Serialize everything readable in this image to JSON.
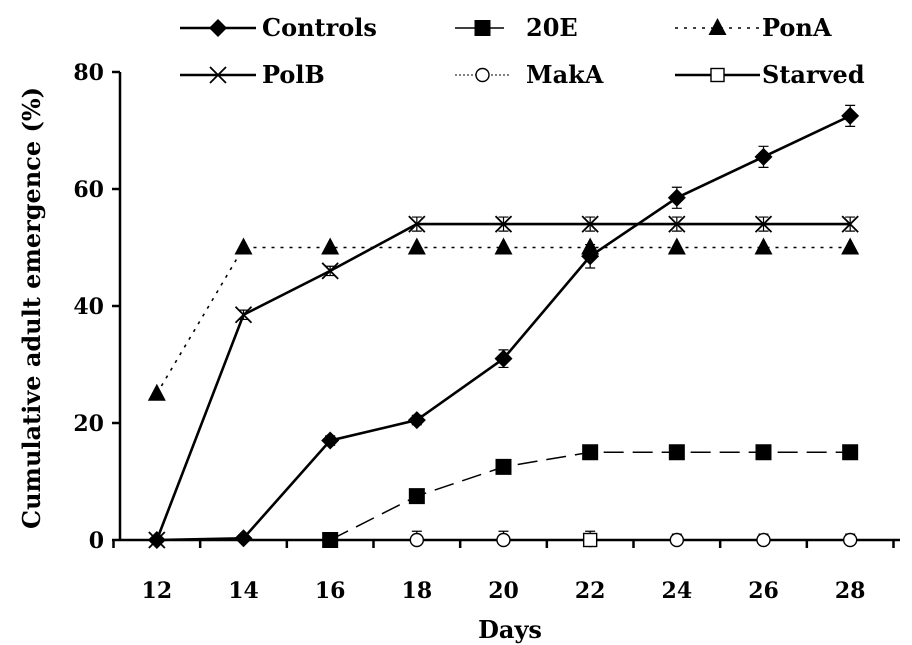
{
  "chart_data": {
    "type": "line",
    "xlabel": "Days",
    "ylabel": "Cumulative adult emergence (%)",
    "x": [
      12,
      14,
      16,
      18,
      20,
      22,
      24,
      26,
      28
    ],
    "x_tick_labels": [
      "12",
      "14",
      "16",
      "18",
      "20",
      "22",
      "24",
      "26",
      "28"
    ],
    "ylim": [
      0,
      80
    ],
    "y_ticks": [
      0,
      20,
      40,
      60,
      80
    ],
    "y_tick_labels": [
      "0",
      "20",
      "40",
      "60",
      "80"
    ],
    "grid": false,
    "legend_position": "top",
    "series": [
      {
        "name": "Controls",
        "marker": "diamond-filled",
        "line": "solid",
        "x": [
          12,
          14,
          16,
          18,
          20,
          22,
          24,
          26,
          28
        ],
        "values": [
          0,
          0.3,
          17,
          20.5,
          31,
          48.5,
          58.5,
          65.5,
          72.5
        ],
        "errors": [
          0,
          0,
          0.8,
          0.8,
          1.5,
          2,
          1.8,
          1.8,
          1.8
        ]
      },
      {
        "name": "20E",
        "marker": "square-filled",
        "line": "long-dash",
        "x": [
          16,
          18,
          20,
          22,
          24,
          26,
          28
        ],
        "values": [
          0,
          7.5,
          12.5,
          15,
          15,
          15,
          15
        ],
        "errors": [
          0,
          0.5,
          0.5,
          0.5,
          0.5,
          0.5,
          0.5
        ]
      },
      {
        "name": "PonA",
        "marker": "triangle-filled",
        "line": "dotted",
        "x": [
          12,
          14,
          16,
          18,
          20,
          22,
          24,
          26,
          28
        ],
        "values": [
          25,
          50,
          50,
          50,
          50,
          50,
          50,
          50,
          50
        ],
        "errors": [
          0,
          0,
          0,
          0,
          0,
          0,
          0,
          0,
          0
        ]
      },
      {
        "name": "PolB",
        "marker": "x-cross",
        "line": "solid",
        "x": [
          12,
          14,
          16,
          18,
          20,
          22,
          24,
          26,
          28
        ],
        "values": [
          0,
          38.5,
          46,
          54,
          54,
          54,
          54,
          54,
          54
        ],
        "errors": [
          0,
          0.8,
          0.8,
          1.2,
          1.2,
          1.2,
          1.2,
          1.2,
          1.2
        ]
      },
      {
        "name": "MakA",
        "marker": "circle-open",
        "line": "thin-dotted",
        "x": [
          18,
          20,
          22,
          24,
          26,
          28
        ],
        "values": [
          0,
          0,
          0,
          0,
          0,
          0
        ],
        "errors": [
          1.5,
          1.5,
          1.5,
          1.0,
          1.0,
          1.0
        ]
      },
      {
        "name": "Starved",
        "marker": "square-open",
        "line": "solid",
        "x": [
          22
        ],
        "values": [
          0
        ],
        "errors": [
          0
        ]
      }
    ]
  }
}
